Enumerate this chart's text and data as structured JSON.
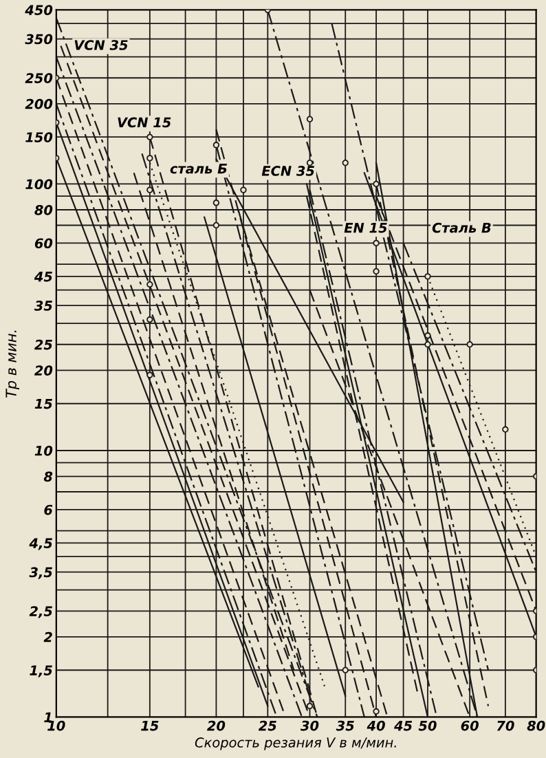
{
  "chart_data": {
    "type": "line",
    "xlabel": "Скорость резания V в м/мин.",
    "ylabel": "Tp в мин.",
    "log": "xy",
    "grid": true,
    "xlim": [
      10,
      80
    ],
    "ylim": [
      1,
      450
    ],
    "xticks": [
      10,
      {
        "value": 12.5,
        "label": null
      },
      15,
      {
        "value": 17.5,
        "label": null
      },
      20,
      {
        "value": 22.5,
        "label": null
      },
      25,
      30,
      35,
      40,
      45,
      50,
      60,
      70,
      80
    ],
    "yticks": [
      1,
      {
        "value": 1.5,
        "label": "1,5"
      },
      2,
      {
        "value": 2.5,
        "label": "2,5"
      },
      {
        "value": 3,
        "label": null
      },
      {
        "value": 3.5,
        "label": "3,5"
      },
      {
        "value": 4,
        "label": null
      },
      {
        "value": 4.5,
        "label": "4,5"
      },
      {
        "value": 5,
        "label": null
      },
      6,
      {
        "value": 7,
        "label": null
      },
      8,
      {
        "value": 9,
        "label": null
      },
      10,
      15,
      20,
      25,
      {
        "value": 30,
        "label": null
      },
      35,
      {
        "value": 40,
        "label": null
      },
      45,
      {
        "value": 50,
        "label": null
      },
      60,
      {
        "value": 70,
        "label": null
      },
      80,
      {
        "value": 90,
        "label": null
      },
      100,
      150,
      200,
      250,
      {
        "value": 300,
        "label": null
      },
      350,
      {
        "value": 400,
        "label": null
      },
      450
    ],
    "annotations": [
      "VCN 35",
      "VCN 15",
      "сталь Б",
      "ECN 35",
      "EN 15",
      "Сталь В"
    ],
    "series": [
      {
        "x": [
          10,
          25
        ],
        "values": [
          170,
          1.1
        ],
        "color": "#1a1a1a",
        "line_style": "solid"
      },
      {
        "x": [
          10,
          24
        ],
        "values": [
          125,
          1.3
        ],
        "color": "#1a1a1a",
        "line_style": "solid"
      },
      {
        "x": [
          10,
          29
        ],
        "values": [
          300,
          1.0
        ],
        "color": "#1a1a1a",
        "line_style": "dashdot"
      },
      {
        "x": [
          10,
          27
        ],
        "values": [
          250,
          1.0
        ],
        "color": "#1a1a1a",
        "line_style": "dashed"
      },
      {
        "x": [
          10.2,
          30
        ],
        "values": [
          330,
          1.0
        ],
        "color": "#1a1a1a",
        "line_style": "dashed"
      },
      {
        "x": [
          10,
          31
        ],
        "values": [
          420,
          1.0
        ],
        "color": "#1a1a1a",
        "line_style": "dashdot"
      },
      {
        "x": [
          10,
          26
        ],
        "values": [
          200,
          1.0
        ],
        "color": "#1a1a1a",
        "line_style": "dashdot"
      },
      {
        "x": [
          15,
          31
        ],
        "values": [
          150,
          1.0
        ],
        "color": "#1a1a1a",
        "line_style": "dashed"
      },
      {
        "x": [
          14.5,
          30
        ],
        "values": [
          130,
          1.2
        ],
        "color": "#1a1a1a",
        "line_style": "dashdot"
      },
      {
        "x": [
          15,
          32
        ],
        "values": [
          120,
          1.3
        ],
        "color": "#1a1a1a",
        "line_style": "dotted"
      },
      {
        "x": [
          14,
          28
        ],
        "values": [
          110,
          1.5
        ],
        "color": "#1a1a1a",
        "line_style": "dashed"
      },
      {
        "x": [
          20,
          40
        ],
        "values": [
          160,
          1.0
        ],
        "color": "#1a1a1a",
        "line_style": "dashed"
      },
      {
        "x": [
          20,
          38
        ],
        "values": [
          140,
          1.0
        ],
        "color": "#1a1a1a",
        "line_style": "dashdot"
      },
      {
        "x": [
          20,
          45
        ],
        "values": [
          124,
          6.4
        ],
        "color": "#1a1a1a",
        "line_style": "solid"
      },
      {
        "x": [
          19,
          35
        ],
        "values": [
          75,
          1.2
        ],
        "color": "#1a1a1a",
        "line_style": "solid"
      },
      {
        "x": [
          22,
          42
        ],
        "values": [
          80,
          1.0
        ],
        "color": "#1a1a1a",
        "line_style": "dashed"
      },
      {
        "x": [
          29.6,
          50
        ],
        "values": [
          100,
          1.0
        ],
        "color": "#1a1a1a",
        "line_style": "solid"
      },
      {
        "x": [
          30,
          52
        ],
        "values": [
          95,
          1.0
        ],
        "color": "#1a1a1a",
        "line_style": "dashdot"
      },
      {
        "x": [
          29.6,
          48
        ],
        "values": [
          90,
          1.2
        ],
        "color": "#1a1a1a",
        "line_style": "dashed"
      },
      {
        "x": [
          30,
          60
        ],
        "values": [
          40,
          1.0
        ],
        "color": "#1a1a1a",
        "line_style": "dashed"
      },
      {
        "x": [
          25,
          62
        ],
        "values": [
          450,
          1.0
        ],
        "color": "#1a1a1a",
        "line_style": "dashdot"
      },
      {
        "x": [
          33,
          65
        ],
        "values": [
          400,
          1.5
        ],
        "color": "#1a1a1a",
        "line_style": "dashdot"
      },
      {
        "x": [
          40,
          62
        ],
        "values": [
          120,
          1.0
        ],
        "color": "#1a1a1a",
        "line_style": "solid"
      },
      {
        "x": [
          40,
          65
        ],
        "values": [
          100,
          1.1
        ],
        "color": "#1a1a1a",
        "line_style": "dashed"
      },
      {
        "x": [
          38,
          80
        ],
        "values": [
          110,
          2.0
        ],
        "color": "#1a1a1a",
        "line_style": "solid"
      },
      {
        "x": [
          40,
          80
        ],
        "values": [
          90,
          2.5
        ],
        "color": "#1a1a1a",
        "line_style": "dashed"
      },
      {
        "x": [
          45,
          80
        ],
        "values": [
          60,
          3.5
        ],
        "color": "#1a1a1a",
        "line_style": "dashdot"
      },
      {
        "x": [
          50,
          80
        ],
        "values": [
          45,
          4.0
        ],
        "color": "#1a1a1a",
        "line_style": "dotted"
      },
      {
        "type": "scatter",
        "marker": "circle",
        "color": "#1a1a1a",
        "x": [
          10,
          10,
          10,
          15,
          15,
          15,
          15,
          15,
          15,
          20,
          20,
          20,
          22.5,
          25,
          30,
          30,
          35,
          40,
          40,
          40,
          50,
          50,
          50,
          60,
          70,
          80,
          80,
          80,
          80,
          40,
          35,
          30
        ],
        "values": [
          125,
          170,
          250,
          150,
          125,
          95,
          42,
          31,
          19.2,
          140,
          85,
          70,
          95,
          450,
          175,
          120,
          120,
          100,
          60,
          47,
          45,
          27,
          25,
          25,
          12,
          8,
          2.5,
          2,
          1.5,
          1.05,
          1.5,
          1.1
        ]
      }
    ]
  }
}
